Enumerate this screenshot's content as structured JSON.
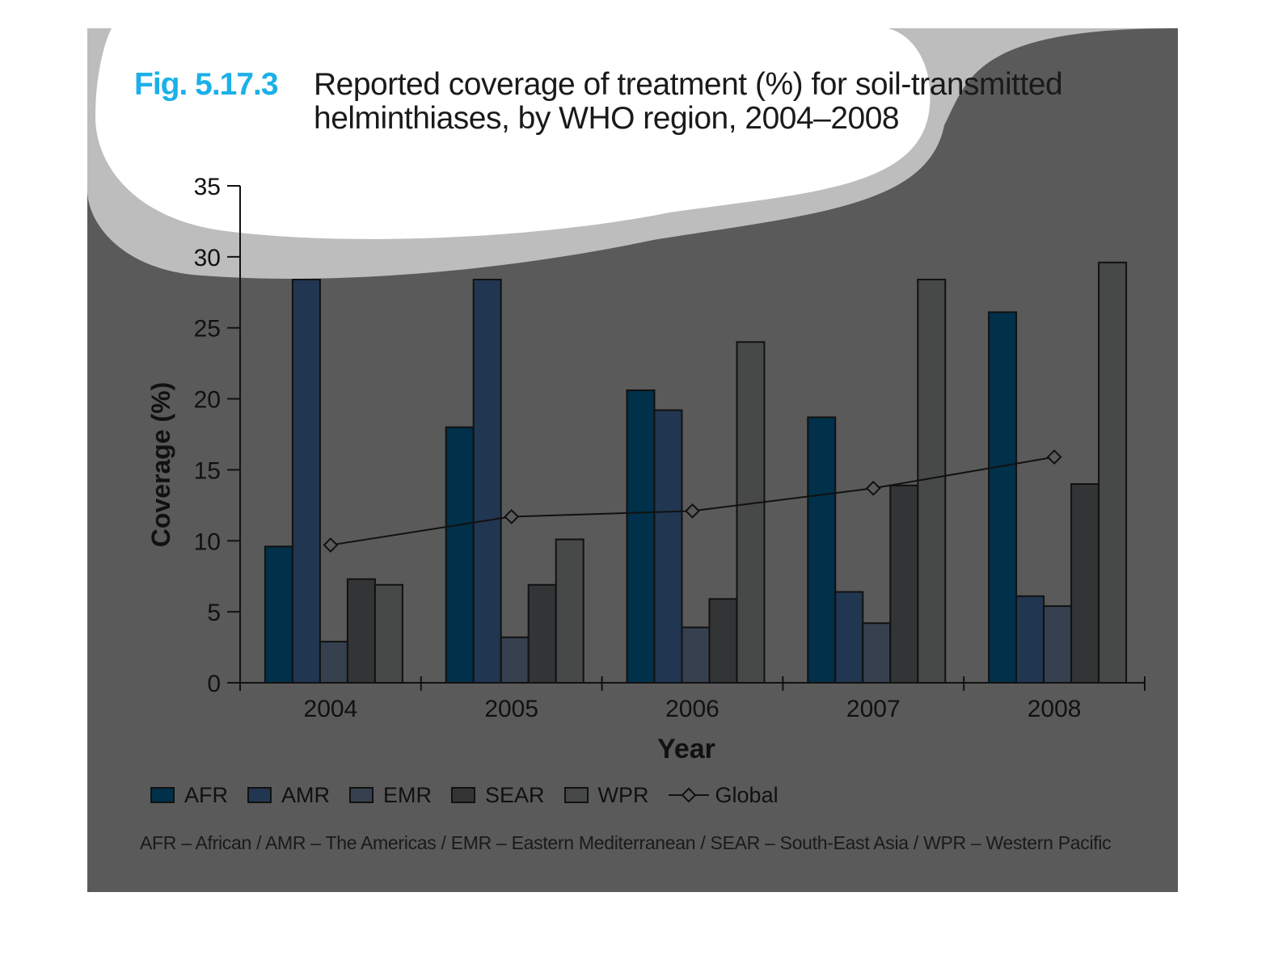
{
  "figure": {
    "number": "Fig. 5.17.3",
    "title_line1": "Reported coverage of treatment (%) for soil-transmitted",
    "title_line2": "helminthiases, by WHO region, 2004–2008"
  },
  "chart_data": {
    "type": "bar",
    "title": "Reported coverage of treatment (%) for soil-transmitted helminthiases, by WHO region, 2004–2008",
    "xlabel": "Year",
    "ylabel": "Coverage (%)",
    "ylim": [
      0,
      35
    ],
    "yticks": [
      0,
      5,
      10,
      15,
      20,
      25,
      30,
      35
    ],
    "categories": [
      "2004",
      "2005",
      "2006",
      "2007",
      "2008"
    ],
    "series": [
      {
        "name": "AFR",
        "color": "#00304a",
        "values": [
          9.6,
          18.0,
          20.6,
          18.7,
          26.1
        ]
      },
      {
        "name": "AMR",
        "color": "#213650",
        "values": [
          28.4,
          28.4,
          19.2,
          6.4,
          6.1
        ]
      },
      {
        "name": "EMR",
        "color": "#36404e",
        "values": [
          2.9,
          3.2,
          3.9,
          4.2,
          5.4
        ]
      },
      {
        "name": "SEAR",
        "color": "#333436",
        "values": [
          7.3,
          6.9,
          5.9,
          13.9,
          14.0
        ]
      },
      {
        "name": "WPR",
        "color": "#474848",
        "values": [
          6.9,
          10.1,
          24.0,
          28.4,
          29.6
        ]
      }
    ],
    "line_series": {
      "name": "Global",
      "type": "line",
      "marker": "diamond",
      "values": [
        9.7,
        11.7,
        12.1,
        13.7,
        15.9
      ]
    },
    "grid": false,
    "legend_position": "bottom-left"
  },
  "footnote": "AFR – African / AMR – The Americas / EMR – Eastern Mediterranean / SEAR – South-East Asia / WPR – Western Pacific"
}
